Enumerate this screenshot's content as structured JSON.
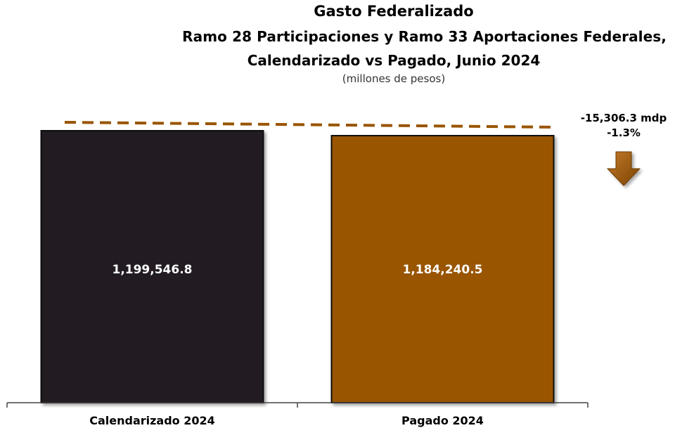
{
  "chart_data": {
    "type": "bar",
    "title": "Gasto Federalizado",
    "title_line2": "Ramo 28 Participaciones y Ramo 33 Aportaciones Federales,",
    "title_line3": "Calendarizado vs Pagado, Junio 2024",
    "subtitle": "(millones de pesos)",
    "categories": [
      "Calendarizado 2024",
      "Pagado 2024"
    ],
    "values": [
      1199546.8,
      1184240.5
    ],
    "value_labels": [
      "1,199,546.8",
      "1,184,240.5"
    ],
    "bar_colors": [
      "#231f20",
      "#995500"
    ],
    "difference_label": "-15,306.3 mdp",
    "difference_pct": "-1.3%",
    "difference_direction": "down",
    "arrow_color": "#995500",
    "trend_line_color": "#995500",
    "ylim": [
      0,
      1199546.8
    ],
    "grid": false
  }
}
